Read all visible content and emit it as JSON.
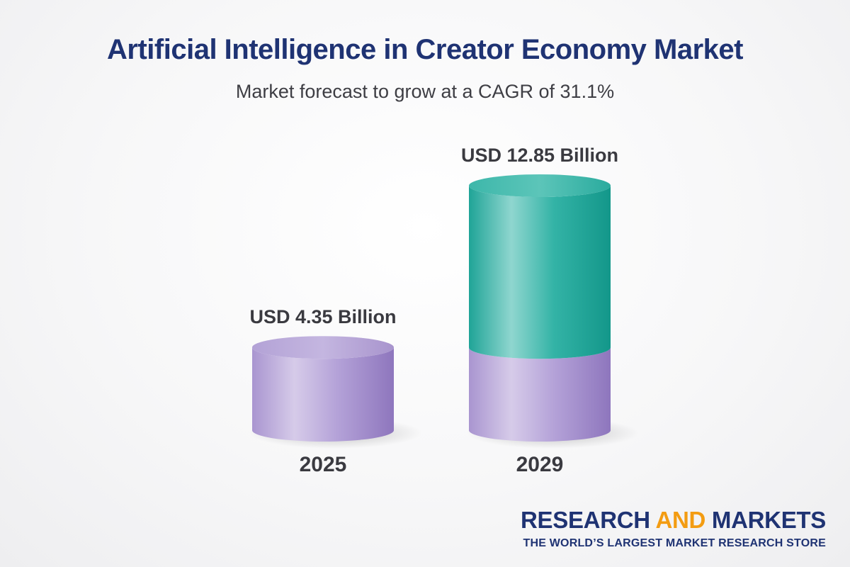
{
  "chart_data": {
    "type": "bar",
    "title": "Artificial Intelligence in Creator Economy Market",
    "subtitle": "Market forecast to grow at a CAGR of 31.1%",
    "categories": [
      "2025",
      "2029"
    ],
    "values": [
      4.35,
      12.85
    ],
    "value_labels": [
      "USD 4.35 Billion",
      "USD 12.85 Billion"
    ],
    "unit": "USD Billion",
    "colors": {
      "base": "#a591cc",
      "growth": "#22a89c"
    }
  },
  "brand": {
    "name_part1": "RESEARCH ",
    "name_part2": "AND",
    "name_part3": " MARKETS",
    "tagline": "THE WORLD’S LARGEST MARKET RESEARCH STORE",
    "colors": {
      "primary": "#1f3373",
      "accent": "#f39c12"
    }
  }
}
